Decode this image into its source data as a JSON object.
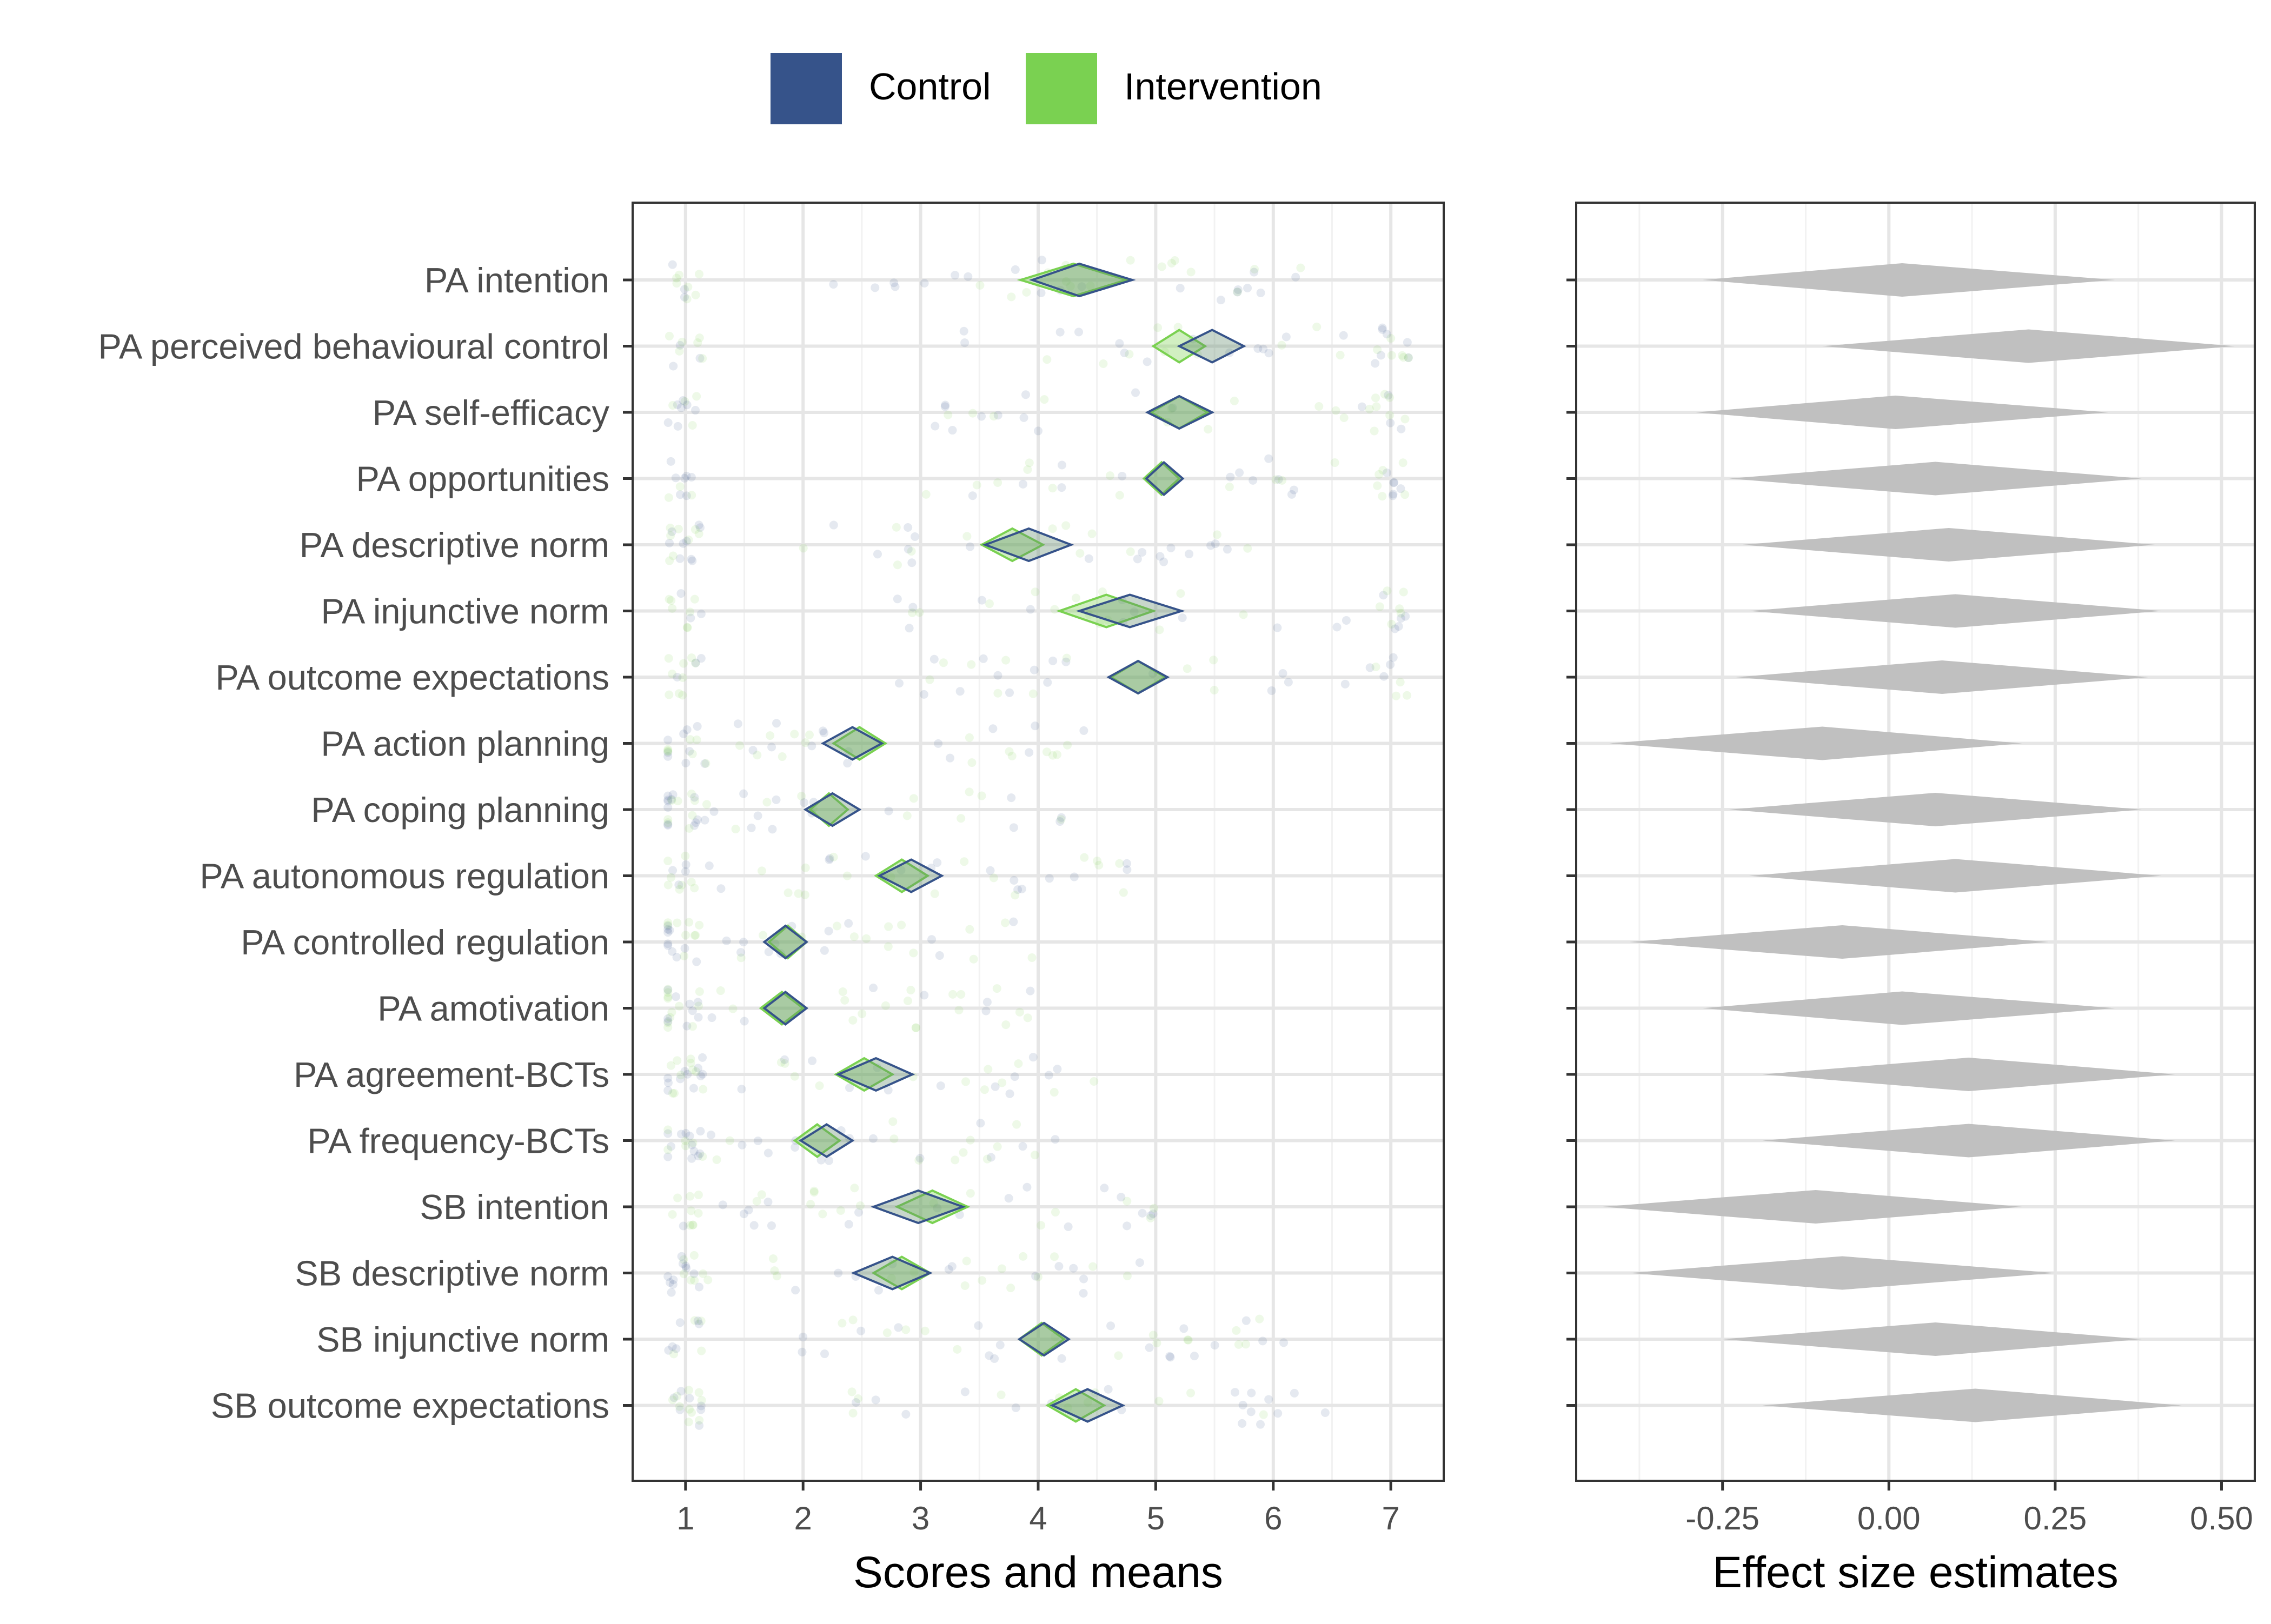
{
  "chart_data": {
    "type": "diamond-interval",
    "legend": {
      "position": "top",
      "items": [
        {
          "label": "Control",
          "color": "#36538A"
        },
        {
          "label": "Intervention",
          "color": "#7AD151"
        }
      ]
    },
    "categories": [
      "PA intention",
      "PA perceived behavioural control",
      "PA self-efficacy",
      "PA opportunities",
      "PA descriptive norm",
      "PA injunctive norm",
      "PA outcome expectations",
      "PA action planning",
      "PA coping planning",
      "PA autonomous regulation",
      "PA controlled regulation",
      "PA amotivation",
      "PA agreement-BCTs",
      "PA frequency-BCTs",
      "SB intention",
      "SB descriptive norm",
      "SB injunctive norm",
      "SB outcome expectations"
    ],
    "panels": [
      {
        "xlabel": "Scores and means",
        "xlim": [
          0.55,
          7.45
        ],
        "xticks": [
          1,
          2,
          3,
          4,
          5,
          6,
          7
        ],
        "grid": true,
        "series": [
          {
            "name": "Control",
            "color": "#36538A",
            "means": [
              4.35,
              5.48,
              5.2,
              5.07,
              3.92,
              4.78,
              4.85,
              2.42,
              2.25,
              2.92,
              1.85,
              1.85,
              2.62,
              2.2,
              2.98,
              2.76,
              4.05,
              4.42
            ],
            "ci_low": [
              3.95,
              5.2,
              4.93,
              4.92,
              3.55,
              4.35,
              4.6,
              2.17,
              2.02,
              2.65,
              1.67,
              1.67,
              2.3,
              1.98,
              2.6,
              2.43,
              3.84,
              4.12
            ],
            "ci_high": [
              4.8,
              5.75,
              5.48,
              5.23,
              4.28,
              5.22,
              5.1,
              2.67,
              2.48,
              3.18,
              2.03,
              2.03,
              2.93,
              2.42,
              3.36,
              3.08,
              4.26,
              4.72
            ]
          },
          {
            "name": "Intervention",
            "color": "#7AD151",
            "means": [
              4.3,
              5.2,
              5.2,
              5.05,
              3.78,
              4.58,
              4.85,
              2.48,
              2.22,
              2.84,
              1.87,
              1.82,
              2.52,
              2.12,
              3.1,
              2.84,
              4.03,
              4.32
            ],
            "ci_low": [
              3.85,
              4.98,
              4.96,
              4.9,
              3.52,
              4.18,
              4.62,
              2.26,
              2.06,
              2.62,
              1.71,
              1.64,
              2.28,
              1.93,
              2.8,
              2.6,
              3.84,
              4.08
            ],
            "ci_high": [
              4.75,
              5.42,
              5.44,
              5.2,
              4.04,
              4.98,
              5.08,
              2.7,
              2.38,
              3.06,
              2.03,
              2.0,
              2.76,
              2.31,
              3.4,
              3.08,
              4.22,
              4.56
            ]
          }
        ]
      },
      {
        "xlabel": "Effect size estimates",
        "xlim": [
          -0.47,
          0.55
        ],
        "xticks": [
          -0.25,
          0.0,
          0.25,
          0.5
        ],
        "xtick_labels": [
          "-0.25",
          "0.00",
          "0.25",
          "0.50"
        ],
        "grid": true,
        "color": "#C0C0C0",
        "estimate": [
          0.02,
          0.21,
          0.01,
          0.07,
          0.09,
          0.1,
          0.08,
          -0.1,
          0.07,
          0.1,
          -0.07,
          0.02,
          0.12,
          0.12,
          -0.11,
          -0.07,
          0.07,
          0.13
        ],
        "ci_low": [
          -0.28,
          -0.1,
          -0.29,
          -0.24,
          -0.22,
          -0.21,
          -0.23,
          -0.42,
          -0.24,
          -0.21,
          -0.39,
          -0.28,
          -0.19,
          -0.19,
          -0.43,
          -0.39,
          -0.25,
          -0.19
        ],
        "ci_high": [
          0.34,
          0.52,
          0.33,
          0.38,
          0.4,
          0.41,
          0.39,
          0.2,
          0.38,
          0.41,
          0.24,
          0.34,
          0.43,
          0.43,
          0.2,
          0.25,
          0.38,
          0.44
        ]
      }
    ]
  }
}
